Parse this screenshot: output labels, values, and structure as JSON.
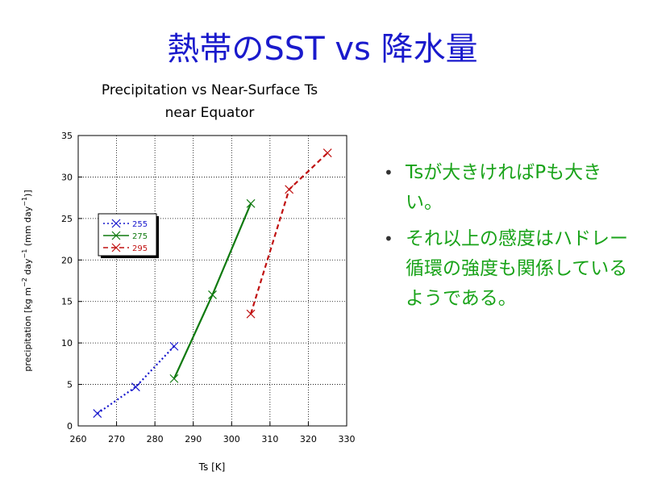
{
  "slide": {
    "title": "熱帯のSST vs 降水量",
    "bullets": [
      "Tsが大きければPも大きい。",
      "それ以上の感度はハドレー循環の強度も関係しているようである。"
    ]
  },
  "chart_data": {
    "type": "line",
    "title_lines": [
      "Precipitation vs Near-Surface Ts",
      "near Equator"
    ],
    "xlabel": "Ts [K]",
    "ylabel": "precipitation [kg m⁻² day⁻¹ (mm day⁻¹)]",
    "xlim": [
      260,
      330
    ],
    "ylim": [
      0,
      35
    ],
    "xticks": [
      260,
      270,
      280,
      290,
      300,
      310,
      320,
      330
    ],
    "yticks": [
      0,
      5,
      10,
      15,
      20,
      25,
      30,
      35
    ],
    "grid": true,
    "legend_position": "upper-left",
    "series": [
      {
        "name": "255",
        "color": "#1414cc",
        "style": "dotted",
        "points": [
          [
            265,
            1.5
          ],
          [
            275,
            4.7
          ],
          [
            285,
            9.6
          ]
        ]
      },
      {
        "name": "275",
        "color": "#0f7a0f",
        "style": "solid",
        "points": [
          [
            285,
            5.7
          ],
          [
            295,
            15.8
          ],
          [
            305,
            26.8
          ]
        ]
      },
      {
        "name": "295",
        "color": "#c01010",
        "style": "dashed",
        "points": [
          [
            305,
            13.5
          ],
          [
            315,
            28.5
          ],
          [
            325,
            32.9
          ]
        ]
      }
    ]
  }
}
